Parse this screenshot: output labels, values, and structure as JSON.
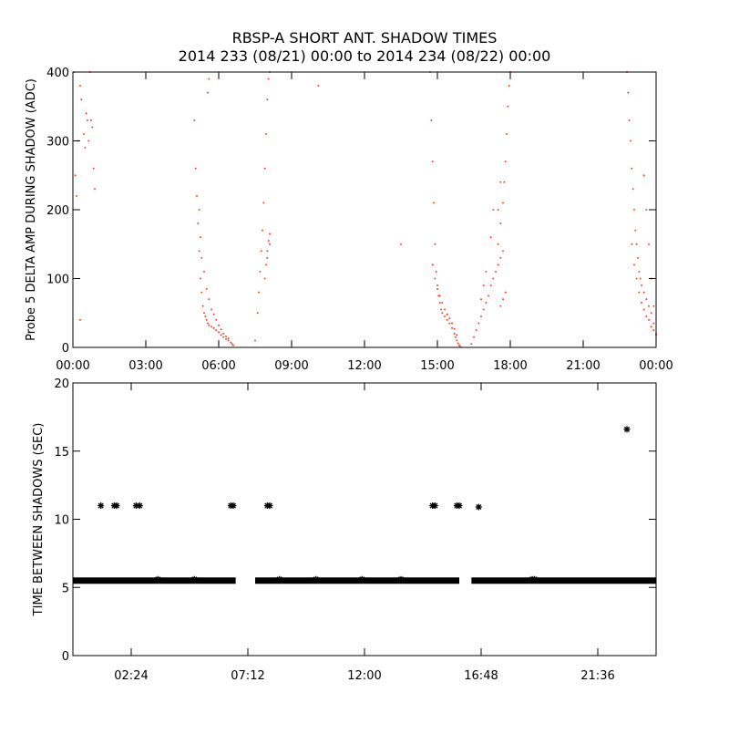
{
  "title_line1": "RBSP-A SHORT ANT. SHADOW TIMES",
  "title_line2": "2014 233 (08/21) 00:00 to 2014 234 (08/22) 00:00",
  "colors": {
    "top_points": "#ff2000",
    "bottom_points": "#000000",
    "axes": "#000000"
  },
  "chart_data": [
    {
      "type": "scatter",
      "ylabel": "Probe 5 DELTA AMP DURING SHADOW (ADC)",
      "xlim": [
        0,
        24
      ],
      "ylim": [
        0,
        400
      ],
      "x_unit": "hours of day",
      "x_ticks": [
        {
          "value": 0,
          "label": "00:00"
        },
        {
          "value": 3,
          "label": "03:00"
        },
        {
          "value": 6,
          "label": "06:00"
        },
        {
          "value": 9,
          "label": "09:00"
        },
        {
          "value": 12,
          "label": "12:00"
        },
        {
          "value": 15,
          "label": "15:00"
        },
        {
          "value": 18,
          "label": "18:00"
        },
        {
          "value": 21,
          "label": "21:00"
        },
        {
          "value": 24,
          "label": "00:00"
        }
      ],
      "y_ticks": [
        {
          "value": 0,
          "label": "0"
        },
        {
          "value": 100,
          "label": "100"
        },
        {
          "value": 200,
          "label": "200"
        },
        {
          "value": 300,
          "label": "300"
        },
        {
          "value": 400,
          "label": "400"
        }
      ],
      "points": [
        [
          0.05,
          400
        ],
        [
          0.1,
          250
        ],
        [
          0.15,
          220
        ],
        [
          0.2,
          300
        ],
        [
          0.3,
          380
        ],
        [
          0.35,
          360
        ],
        [
          0.45,
          310
        ],
        [
          0.5,
          290
        ],
        [
          0.55,
          340
        ],
        [
          0.6,
          330
        ],
        [
          0.65,
          300
        ],
        [
          0.7,
          400
        ],
        [
          0.75,
          330
        ],
        [
          0.8,
          320
        ],
        [
          0.85,
          260
        ],
        [
          0.9,
          230
        ],
        [
          0.3,
          40
        ],
        [
          5.0,
          330
        ],
        [
          5.05,
          260
        ],
        [
          5.1,
          220
        ],
        [
          5.15,
          180
        ],
        [
          5.2,
          140
        ],
        [
          5.25,
          100
        ],
        [
          5.3,
          80
        ],
        [
          5.35,
          60
        ],
        [
          5.4,
          50
        ],
        [
          5.45,
          45
        ],
        [
          5.5,
          40
        ],
        [
          5.55,
          35
        ],
        [
          5.6,
          32
        ],
        [
          5.7,
          30
        ],
        [
          5.8,
          28
        ],
        [
          5.9,
          25
        ],
        [
          6.0,
          22
        ],
        [
          6.1,
          18
        ],
        [
          6.2,
          15
        ],
        [
          6.3,
          12
        ],
        [
          6.4,
          10
        ],
        [
          6.5,
          7
        ],
        [
          6.55,
          5
        ],
        [
          6.6,
          3
        ],
        [
          5.2,
          200
        ],
        [
          5.25,
          160
        ],
        [
          5.3,
          130
        ],
        [
          5.4,
          110
        ],
        [
          5.5,
          85
        ],
        [
          5.6,
          70
        ],
        [
          5.7,
          55
        ],
        [
          5.8,
          48
        ],
        [
          5.9,
          40
        ],
        [
          6.0,
          32
        ],
        [
          6.1,
          26
        ],
        [
          6.2,
          20
        ],
        [
          6.3,
          16
        ],
        [
          6.4,
          13
        ],
        [
          5.6,
          390
        ],
        [
          5.55,
          370
        ],
        [
          7.5,
          10
        ],
        [
          7.6,
          50
        ],
        [
          7.65,
          80
        ],
        [
          7.7,
          110
        ],
        [
          7.75,
          140
        ],
        [
          7.8,
          170
        ],
        [
          7.85,
          210
        ],
        [
          7.9,
          260
        ],
        [
          7.95,
          310
        ],
        [
          8.0,
          360
        ],
        [
          8.05,
          390
        ],
        [
          8.1,
          400
        ],
        [
          7.9,
          100
        ],
        [
          7.95,
          120
        ],
        [
          8.0,
          140
        ],
        [
          8.05,
          155
        ],
        [
          8.1,
          165
        ],
        [
          8.0,
          130
        ],
        [
          8.1,
          150
        ],
        [
          10.1,
          380
        ],
        [
          13.5,
          150
        ],
        [
          14.7,
          400
        ],
        [
          14.75,
          330
        ],
        [
          14.8,
          270
        ],
        [
          14.85,
          210
        ],
        [
          14.9,
          150
        ],
        [
          14.95,
          110
        ],
        [
          15.0,
          90
        ],
        [
          15.05,
          75
        ],
        [
          15.1,
          65
        ],
        [
          15.15,
          55
        ],
        [
          15.2,
          50
        ],
        [
          15.3,
          45
        ],
        [
          15.4,
          40
        ],
        [
          15.5,
          35
        ],
        [
          15.6,
          28
        ],
        [
          15.7,
          20
        ],
        [
          15.75,
          15
        ],
        [
          15.8,
          10
        ],
        [
          15.85,
          6
        ],
        [
          15.9,
          3
        ],
        [
          15.95,
          1
        ],
        [
          14.8,
          120
        ],
        [
          14.9,
          100
        ],
        [
          15.0,
          85
        ],
        [
          15.1,
          75
        ],
        [
          15.2,
          65
        ],
        [
          15.3,
          55
        ],
        [
          15.4,
          48
        ],
        [
          15.5,
          42
        ],
        [
          15.6,
          35
        ],
        [
          15.7,
          27
        ],
        [
          15.8,
          18
        ],
        [
          16.4,
          5
        ],
        [
          16.5,
          15
        ],
        [
          16.6,
          25
        ],
        [
          16.7,
          35
        ],
        [
          16.8,
          45
        ],
        [
          16.9,
          55
        ],
        [
          17.0,
          65
        ],
        [
          17.1,
          75
        ],
        [
          17.2,
          90
        ],
        [
          17.3,
          100
        ],
        [
          17.4,
          110
        ],
        [
          17.5,
          120
        ],
        [
          17.6,
          130
        ],
        [
          17.7,
          140
        ],
        [
          17.6,
          60
        ],
        [
          17.7,
          70
        ],
        [
          17.8,
          80
        ],
        [
          17.5,
          150
        ],
        [
          17.6,
          180
        ],
        [
          17.7,
          210
        ],
        [
          17.75,
          240
        ],
        [
          17.8,
          270
        ],
        [
          17.85,
          310
        ],
        [
          17.9,
          350
        ],
        [
          17.95,
          380
        ],
        [
          18.0,
          400
        ],
        [
          17.3,
          200
        ],
        [
          17.2,
          160
        ],
        [
          17.0,
          110
        ],
        [
          16.9,
          90
        ],
        [
          16.8,
          70
        ],
        [
          17.6,
          240
        ],
        [
          17.5,
          200
        ],
        [
          22.8,
          400
        ],
        [
          22.85,
          370
        ],
        [
          22.9,
          330
        ],
        [
          22.95,
          300
        ],
        [
          23.0,
          260
        ],
        [
          23.05,
          230
        ],
        [
          23.1,
          200
        ],
        [
          23.15,
          170
        ],
        [
          23.2,
          150
        ],
        [
          23.25,
          130
        ],
        [
          23.3,
          110
        ],
        [
          23.35,
          100
        ],
        [
          23.4,
          90
        ],
        [
          23.5,
          80
        ],
        [
          23.6,
          70
        ],
        [
          23.7,
          60
        ],
        [
          23.8,
          50
        ],
        [
          23.9,
          35
        ],
        [
          24.0,
          20
        ],
        [
          23.0,
          150
        ],
        [
          23.1,
          120
        ],
        [
          23.2,
          100
        ],
        [
          23.3,
          80
        ],
        [
          23.4,
          65
        ],
        [
          23.5,
          55
        ],
        [
          23.6,
          45
        ],
        [
          23.7,
          40
        ],
        [
          23.8,
          30
        ],
        [
          23.9,
          25
        ],
        [
          24.0,
          18
        ],
        [
          23.5,
          250
        ],
        [
          23.6,
          200
        ],
        [
          23.7,
          150
        ],
        [
          23.8,
          100
        ],
        [
          23.9,
          60
        ]
      ]
    },
    {
      "type": "scatter",
      "ylabel": "TIME BETWEEN SHADOWS (SEC)",
      "xlim": [
        0,
        24
      ],
      "ylim": [
        0,
        20
      ],
      "x_unit": "hours of day",
      "marker": "*",
      "x_ticks": [
        {
          "value": 2.4,
          "label": "02:24"
        },
        {
          "value": 7.2,
          "label": "07:12"
        },
        {
          "value": 12.0,
          "label": "12:00"
        },
        {
          "value": 16.8,
          "label": "16:48"
        },
        {
          "value": 21.6,
          "label": "21:36"
        }
      ],
      "y_ticks": [
        {
          "value": 0,
          "label": "0"
        },
        {
          "value": 5,
          "label": "5"
        },
        {
          "value": 10,
          "label": "10"
        },
        {
          "value": 15,
          "label": "15"
        },
        {
          "value": 20,
          "label": "20"
        }
      ],
      "baseline_segments": [
        {
          "x_start": 0.0,
          "x_end": 6.7,
          "y": 5.5
        },
        {
          "x_start": 7.5,
          "x_end": 15.9,
          "y": 5.5
        },
        {
          "x_start": 16.4,
          "x_end": 24.0,
          "y": 5.5
        }
      ],
      "points": [
        [
          1.15,
          11.0
        ],
        [
          1.7,
          11.0
        ],
        [
          1.8,
          11.0
        ],
        [
          2.6,
          11.0
        ],
        [
          2.75,
          11.0
        ],
        [
          6.5,
          11.0
        ],
        [
          6.6,
          11.0
        ],
        [
          8.0,
          11.0
        ],
        [
          8.1,
          11.0
        ],
        [
          14.8,
          11.0
        ],
        [
          14.9,
          11.0
        ],
        [
          15.8,
          11.0
        ],
        [
          15.9,
          11.0
        ],
        [
          16.7,
          10.9
        ],
        [
          22.8,
          16.6
        ],
        [
          3.5,
          5.6
        ],
        [
          5.0,
          5.6
        ],
        [
          8.5,
          5.6
        ],
        [
          10.0,
          5.6
        ],
        [
          11.9,
          5.6
        ],
        [
          13.5,
          5.6
        ],
        [
          18.9,
          5.6
        ],
        [
          19.0,
          5.6
        ]
      ]
    }
  ]
}
